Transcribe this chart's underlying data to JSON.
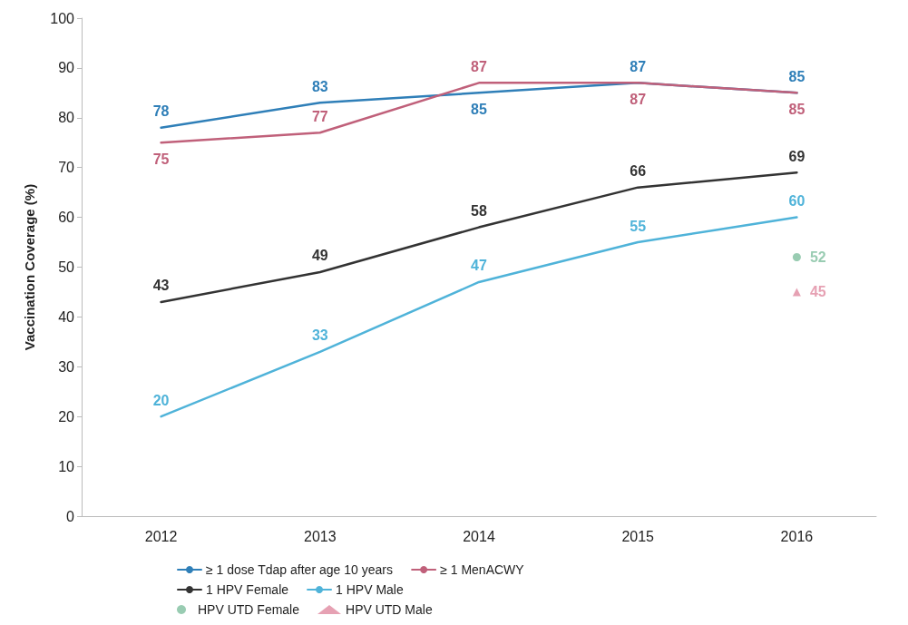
{
  "chart_data": {
    "type": "line",
    "ylabel": "Vaccination Coverage (%)",
    "categories": [
      "2012",
      "2013",
      "2014",
      "2015",
      "2016"
    ],
    "series": [
      {
        "name": "≥ 1 dose Tdap after age 10 years",
        "color": "#2f7fb8",
        "values": [
          78,
          83,
          85,
          87,
          85
        ],
        "marker": "none"
      },
      {
        "name": "≥ 1 MenACWY",
        "color": "#c0607a",
        "values": [
          75,
          77,
          87,
          87,
          85
        ],
        "marker": "none"
      },
      {
        "name": "1 HPV Female",
        "color": "#333333",
        "values": [
          43,
          49,
          58,
          66,
          69
        ],
        "marker": "none"
      },
      {
        "name": "1 HPV Male",
        "color": "#4fb3d9",
        "values": [
          20,
          33,
          47,
          55,
          60
        ],
        "marker": "none"
      },
      {
        "name": "HPV UTD Female",
        "type": "scatter",
        "color": "#7fbf9f",
        "values": [
          null,
          null,
          null,
          null,
          52
        ],
        "marker": "circle"
      },
      {
        "name": "HPV UTD Male",
        "type": "scatter",
        "color": "#e08aa0",
        "values": [
          null,
          null,
          null,
          null,
          45
        ],
        "marker": "triangle"
      }
    ],
    "ylim": [
      0,
      100
    ],
    "yticks": [
      0,
      10,
      20,
      30,
      40,
      50,
      60,
      70,
      80,
      90,
      100
    ],
    "grid": false,
    "legend": "bottom",
    "data_labels": true
  }
}
